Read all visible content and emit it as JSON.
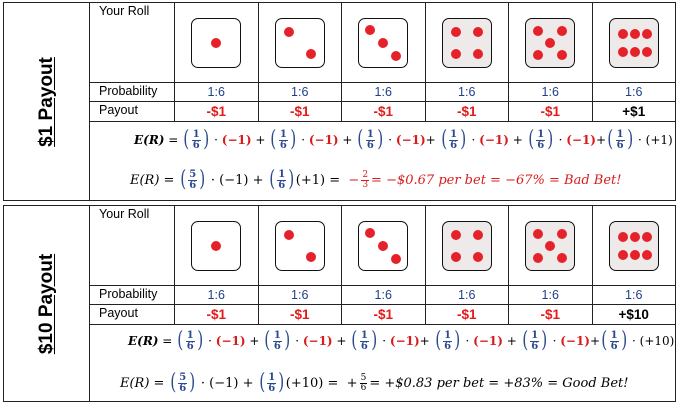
{
  "panels": [
    {
      "side_label": "$1 Payout",
      "row_labels": {
        "roll": "Your Roll",
        "probability": "Probability",
        "payout": "Payout"
      },
      "probabilities": [
        "1:6",
        "1:6",
        "1:6",
        "1:6",
        "1:6",
        "1:6"
      ],
      "payouts": [
        "-$1",
        "-$1",
        "-$1",
        "-$1",
        "-$1",
        "+$1"
      ],
      "formula_line1": {
        "lhs": "E(R)",
        "terms": [
          {
            "num": "1",
            "den": "6",
            "val": "(−1)"
          },
          {
            "num": "1",
            "den": "6",
            "val": "(−1)"
          },
          {
            "num": "1",
            "den": "6",
            "val": "(−1)"
          },
          {
            "num": "1",
            "den": "6",
            "val": "(−1)"
          },
          {
            "num": "1",
            "den": "6",
            "val": "(−1)"
          },
          {
            "num": "1",
            "den": "6",
            "val": "(+1)"
          }
        ]
      },
      "formula_line2": {
        "lhs": "E(R)",
        "num1": "5",
        "den1": "6",
        "v1": "(−1)",
        "num2": "1",
        "den2": "6",
        "v2": "(+1)",
        "sign": "−",
        "rnum": "2",
        "rden": "3",
        "result": "= −$0.67 per bet =  −67% = Bad Bet!"
      }
    },
    {
      "side_label": "$10 Payout",
      "row_labels": {
        "roll": "Your Roll",
        "probability": "Probability",
        "payout": "Payout"
      },
      "probabilities": [
        "1:6",
        "1:6",
        "1:6",
        "1:6",
        "1:6",
        "1:6"
      ],
      "payouts": [
        "-$1",
        "-$1",
        "-$1",
        "-$1",
        "-$1",
        "+$10"
      ],
      "formula_line1": {
        "lhs": "E(R)",
        "terms": [
          {
            "num": "1",
            "den": "6",
            "val": "(−1)"
          },
          {
            "num": "1",
            "den": "6",
            "val": "(−1)"
          },
          {
            "num": "1",
            "den": "6",
            "val": "(−1)"
          },
          {
            "num": "1",
            "den": "6",
            "val": "(−1)"
          },
          {
            "num": "1",
            "den": "6",
            "val": "(−1)"
          },
          {
            "num": "1",
            "den": "6",
            "val": "(+10)"
          }
        ]
      },
      "formula_line2": {
        "lhs": "E(R)",
        "num1": "5",
        "den1": "6",
        "v1": "(−1)",
        "num2": "1",
        "den2": "6",
        "v2": "(+10)",
        "sign": "+",
        "rnum": "5",
        "rden": "6",
        "result": "= +$0.83 per bet =  +83% = Good Bet!"
      }
    }
  ],
  "colors": {
    "pip": "#e5222a",
    "negative": "#d81b1b",
    "probability": "#1f3f88"
  }
}
